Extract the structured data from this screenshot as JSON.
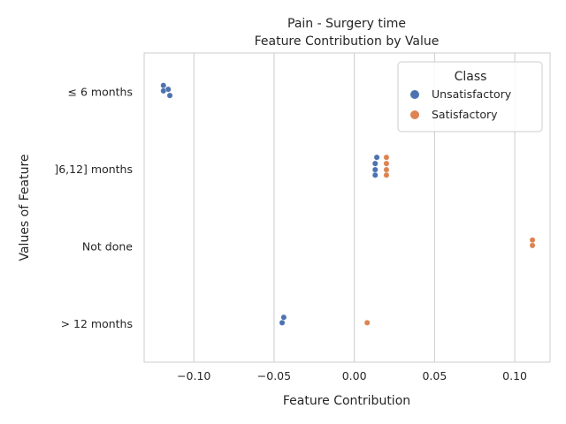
{
  "chart_data": {
    "type": "scatter",
    "title": "Pain - Surgery time",
    "subtitle": "Feature Contribution by Value",
    "xlabel": "Feature Contribution",
    "ylabel": "Values of Feature",
    "xlim": [
      -0.131,
      0.122
    ],
    "x_ticks": [
      -0.1,
      -0.05,
      0.0,
      0.05,
      0.1
    ],
    "x_tick_labels": [
      "−0.10",
      "−0.05",
      "0.00",
      "0.05",
      "0.10"
    ],
    "categories": [
      "≤ 6 months",
      "]6,12] months",
      "Not done",
      "> 12 months"
    ],
    "grid": "vertical",
    "legend": {
      "title": "Class",
      "placement": "top-right",
      "entries": [
        {
          "label": "Unsatisfactory",
          "color": "#4c72b0"
        },
        {
          "label": "Satisfactory",
          "color": "#dd8452"
        }
      ]
    },
    "series": [
      {
        "name": "Unsatisfactory",
        "color": "#4c72b0",
        "points": [
          {
            "category": "≤ 6 months",
            "x": -0.119,
            "offset": -0.08
          },
          {
            "category": "≤ 6 months",
            "x": -0.116,
            "offset": -0.03
          },
          {
            "category": "≤ 6 months",
            "x": -0.119,
            "offset": -0.01
          },
          {
            "category": "≤ 6 months",
            "x": -0.115,
            "offset": 0.05
          },
          {
            "category": "]6,12] months",
            "x": 0.014,
            "offset": -0.15
          },
          {
            "category": "]6,12] months",
            "x": 0.013,
            "offset": -0.07
          },
          {
            "category": "]6,12] months",
            "x": 0.013,
            "offset": 0.01
          },
          {
            "category": "]6,12] months",
            "x": 0.013,
            "offset": 0.08
          },
          {
            "category": "> 12 months",
            "x": -0.044,
            "offset": -0.08
          },
          {
            "category": "> 12 months",
            "x": -0.045,
            "offset": -0.01
          }
        ]
      },
      {
        "name": "Satisfactory",
        "color": "#dd8452",
        "points": [
          {
            "category": "]6,12] months",
            "x": 0.02,
            "offset": -0.15
          },
          {
            "category": "]6,12] months",
            "x": 0.02,
            "offset": -0.07
          },
          {
            "category": "]6,12] months",
            "x": 0.02,
            "offset": 0.01
          },
          {
            "category": "]6,12] months",
            "x": 0.02,
            "offset": 0.08
          },
          {
            "category": "Not done",
            "x": 0.111,
            "offset": -0.08
          },
          {
            "category": "Not done",
            "x": 0.111,
            "offset": -0.01
          },
          {
            "category": "> 12 months",
            "x": 0.008,
            "offset": -0.01
          }
        ]
      }
    ]
  }
}
